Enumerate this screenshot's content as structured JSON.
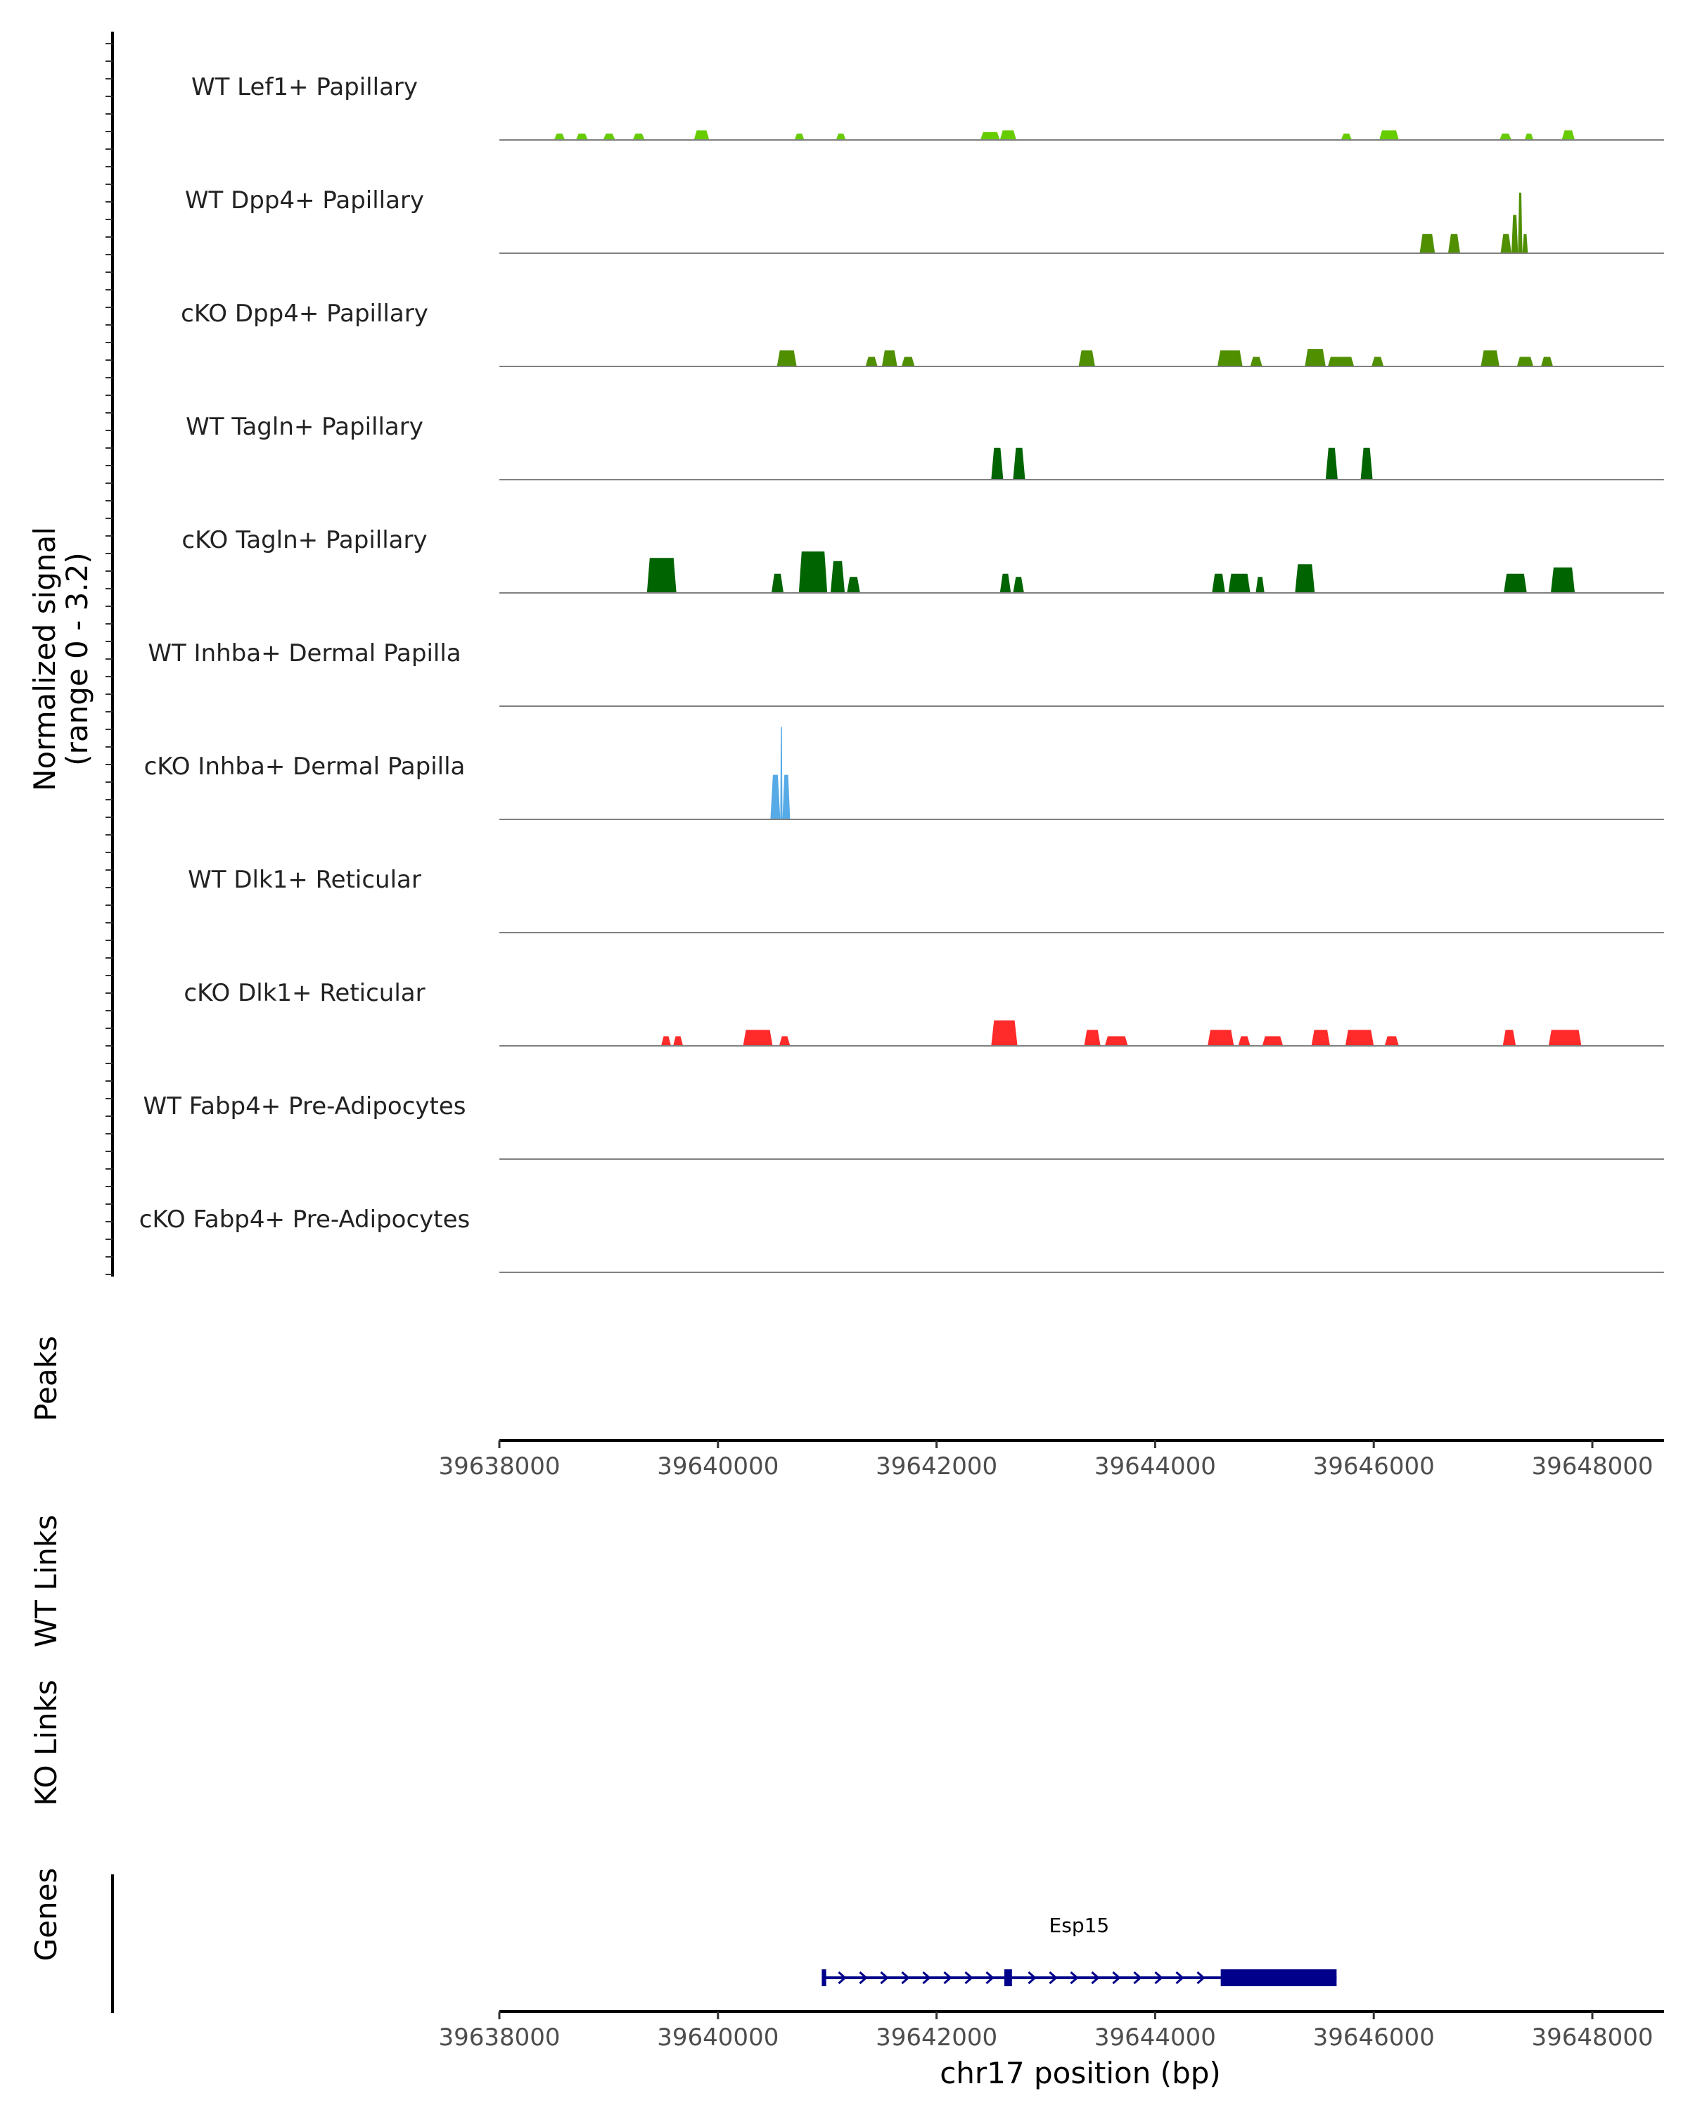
{
  "chart_data": {
    "type": "coverage",
    "title": "",
    "chromosome": "chr17",
    "xlabel": "chr17 position (bp)",
    "xlim": [
      39638000,
      39648600
    ],
    "xticks": [
      39638000,
      39640000,
      39642000,
      39644000,
      39646000,
      39648000
    ],
    "y_axis_label_line1": "Normalized signal",
    "y_axis_label_line2": "(range 0 - 3.2)",
    "ylim": [
      0,
      3.2
    ],
    "tracks": [
      {
        "name": "WT Lef1+ Papillary",
        "color": "#66cc00",
        "peaks": [
          {
            "start": 39638500,
            "end": 39638600,
            "value": 0.2
          },
          {
            "start": 39638700,
            "end": 39638810,
            "value": 0.2
          },
          {
            "start": 39638950,
            "end": 39639060,
            "value": 0.2
          },
          {
            "start": 39639220,
            "end": 39639330,
            "value": 0.2
          },
          {
            "start": 39639780,
            "end": 39639920,
            "value": 0.3
          },
          {
            "start": 39640700,
            "end": 39640790,
            "value": 0.2
          },
          {
            "start": 39641080,
            "end": 39641170,
            "value": 0.2
          },
          {
            "start": 39642400,
            "end": 39642580,
            "value": 0.25
          },
          {
            "start": 39642580,
            "end": 39642730,
            "value": 0.3
          },
          {
            "start": 39645700,
            "end": 39645800,
            "value": 0.2
          },
          {
            "start": 39646050,
            "end": 39646230,
            "value": 0.3
          },
          {
            "start": 39647150,
            "end": 39647260,
            "value": 0.2
          },
          {
            "start": 39647380,
            "end": 39647460,
            "value": 0.2
          },
          {
            "start": 39647720,
            "end": 39647840,
            "value": 0.3
          }
        ]
      },
      {
        "name": "WT Dpp4+ Papillary",
        "color": "#4f8f00",
        "peaks": [
          {
            "start": 39646420,
            "end": 39646560,
            "value": 0.6
          },
          {
            "start": 39646680,
            "end": 39646790,
            "value": 0.6
          },
          {
            "start": 39647160,
            "end": 39647260,
            "value": 0.6
          },
          {
            "start": 39647260,
            "end": 39647320,
            "value": 1.2
          },
          {
            "start": 39647320,
            "end": 39647360,
            "value": 1.9
          },
          {
            "start": 39647360,
            "end": 39647410,
            "value": 0.6
          }
        ]
      },
      {
        "name": "cKO Dpp4+ Papillary",
        "color": "#4f8f00",
        "peaks": [
          {
            "start": 39640540,
            "end": 39640720,
            "value": 0.5
          },
          {
            "start": 39641350,
            "end": 39641460,
            "value": 0.3
          },
          {
            "start": 39641500,
            "end": 39641640,
            "value": 0.5
          },
          {
            "start": 39641680,
            "end": 39641800,
            "value": 0.3
          },
          {
            "start": 39643300,
            "end": 39643450,
            "value": 0.5
          },
          {
            "start": 39644570,
            "end": 39644800,
            "value": 0.5
          },
          {
            "start": 39644870,
            "end": 39644980,
            "value": 0.3
          },
          {
            "start": 39645370,
            "end": 39645560,
            "value": 0.55
          },
          {
            "start": 39645580,
            "end": 39645820,
            "value": 0.3
          },
          {
            "start": 39645980,
            "end": 39646090,
            "value": 0.3
          },
          {
            "start": 39646980,
            "end": 39647150,
            "value": 0.5
          },
          {
            "start": 39647310,
            "end": 39647460,
            "value": 0.3
          },
          {
            "start": 39647530,
            "end": 39647640,
            "value": 0.3
          }
        ]
      },
      {
        "name": "WT Tagln+ Papillary",
        "color": "#006400",
        "peaks": [
          {
            "start": 39642500,
            "end": 39642610,
            "value": 1.0
          },
          {
            "start": 39642700,
            "end": 39642810,
            "value": 1.0
          },
          {
            "start": 39645560,
            "end": 39645670,
            "value": 1.0
          },
          {
            "start": 39645880,
            "end": 39645990,
            "value": 1.0
          }
        ]
      },
      {
        "name": "cKO Tagln+ Papillary",
        "color": "#006400",
        "peaks": [
          {
            "start": 39639350,
            "end": 39639620,
            "value": 1.1
          },
          {
            "start": 39640490,
            "end": 39640600,
            "value": 0.6
          },
          {
            "start": 39640740,
            "end": 39641000,
            "value": 1.3
          },
          {
            "start": 39641030,
            "end": 39641160,
            "value": 1.0
          },
          {
            "start": 39641180,
            "end": 39641300,
            "value": 0.5
          },
          {
            "start": 39642580,
            "end": 39642680,
            "value": 0.6
          },
          {
            "start": 39642700,
            "end": 39642800,
            "value": 0.5
          },
          {
            "start": 39644520,
            "end": 39644640,
            "value": 0.6
          },
          {
            "start": 39644670,
            "end": 39644870,
            "value": 0.6
          },
          {
            "start": 39644920,
            "end": 39645000,
            "value": 0.5
          },
          {
            "start": 39645280,
            "end": 39645460,
            "value": 0.9
          },
          {
            "start": 39647190,
            "end": 39647400,
            "value": 0.6
          },
          {
            "start": 39647620,
            "end": 39647840,
            "value": 0.8
          }
        ]
      },
      {
        "name": "WT Inhba+ Dermal Papilla",
        "color": "#56aae6",
        "peaks": []
      },
      {
        "name": "cKO Inhba+ Dermal Papilla",
        "color": "#56aae6",
        "peaks": [
          {
            "start": 39640480,
            "end": 39640570,
            "value": 1.4
          },
          {
            "start": 39640570,
            "end": 39640590,
            "value": 2.9
          },
          {
            "start": 39640590,
            "end": 39640660,
            "value": 1.4
          }
        ]
      },
      {
        "name": "WT Dlk1+ Reticular",
        "color": "#ff2a2a",
        "peaks": []
      },
      {
        "name": "cKO Dlk1+ Reticular",
        "color": "#ff2a2a",
        "peaks": [
          {
            "start": 39639480,
            "end": 39639570,
            "value": 0.3
          },
          {
            "start": 39639590,
            "end": 39639680,
            "value": 0.3
          },
          {
            "start": 39640230,
            "end": 39640500,
            "value": 0.5
          },
          {
            "start": 39640560,
            "end": 39640660,
            "value": 0.3
          },
          {
            "start": 39642500,
            "end": 39642740,
            "value": 0.8
          },
          {
            "start": 39643350,
            "end": 39643500,
            "value": 0.5
          },
          {
            "start": 39643540,
            "end": 39643750,
            "value": 0.3
          },
          {
            "start": 39644480,
            "end": 39644720,
            "value": 0.5
          },
          {
            "start": 39644760,
            "end": 39644870,
            "value": 0.3
          },
          {
            "start": 39644980,
            "end": 39645170,
            "value": 0.3
          },
          {
            "start": 39645430,
            "end": 39645600,
            "value": 0.5
          },
          {
            "start": 39645740,
            "end": 39646000,
            "value": 0.5
          },
          {
            "start": 39646100,
            "end": 39646230,
            "value": 0.3
          },
          {
            "start": 39647180,
            "end": 39647300,
            "value": 0.5
          },
          {
            "start": 39647600,
            "end": 39647900,
            "value": 0.5
          }
        ]
      },
      {
        "name": "WT Fabp4+ Pre-Adipocytes",
        "color": "#ff9900",
        "peaks": []
      },
      {
        "name": "cKO Fabp4+ Pre-Adipocytes",
        "color": "#ff9900",
        "peaks": []
      }
    ],
    "peaks_label": "Peaks",
    "wt_links_label": "WT Links",
    "ko_links_label": "KO Links",
    "genes_label": "Genes",
    "gene": {
      "name": "Esp15",
      "color": "#00008b",
      "start": 39640950,
      "end": 39645660,
      "strand": "+",
      "exons": [
        {
          "start": 39640950,
          "end": 39640990
        },
        {
          "start": 39642620,
          "end": 39642690
        },
        {
          "start": 39644600,
          "end": 39645660
        }
      ]
    }
  }
}
